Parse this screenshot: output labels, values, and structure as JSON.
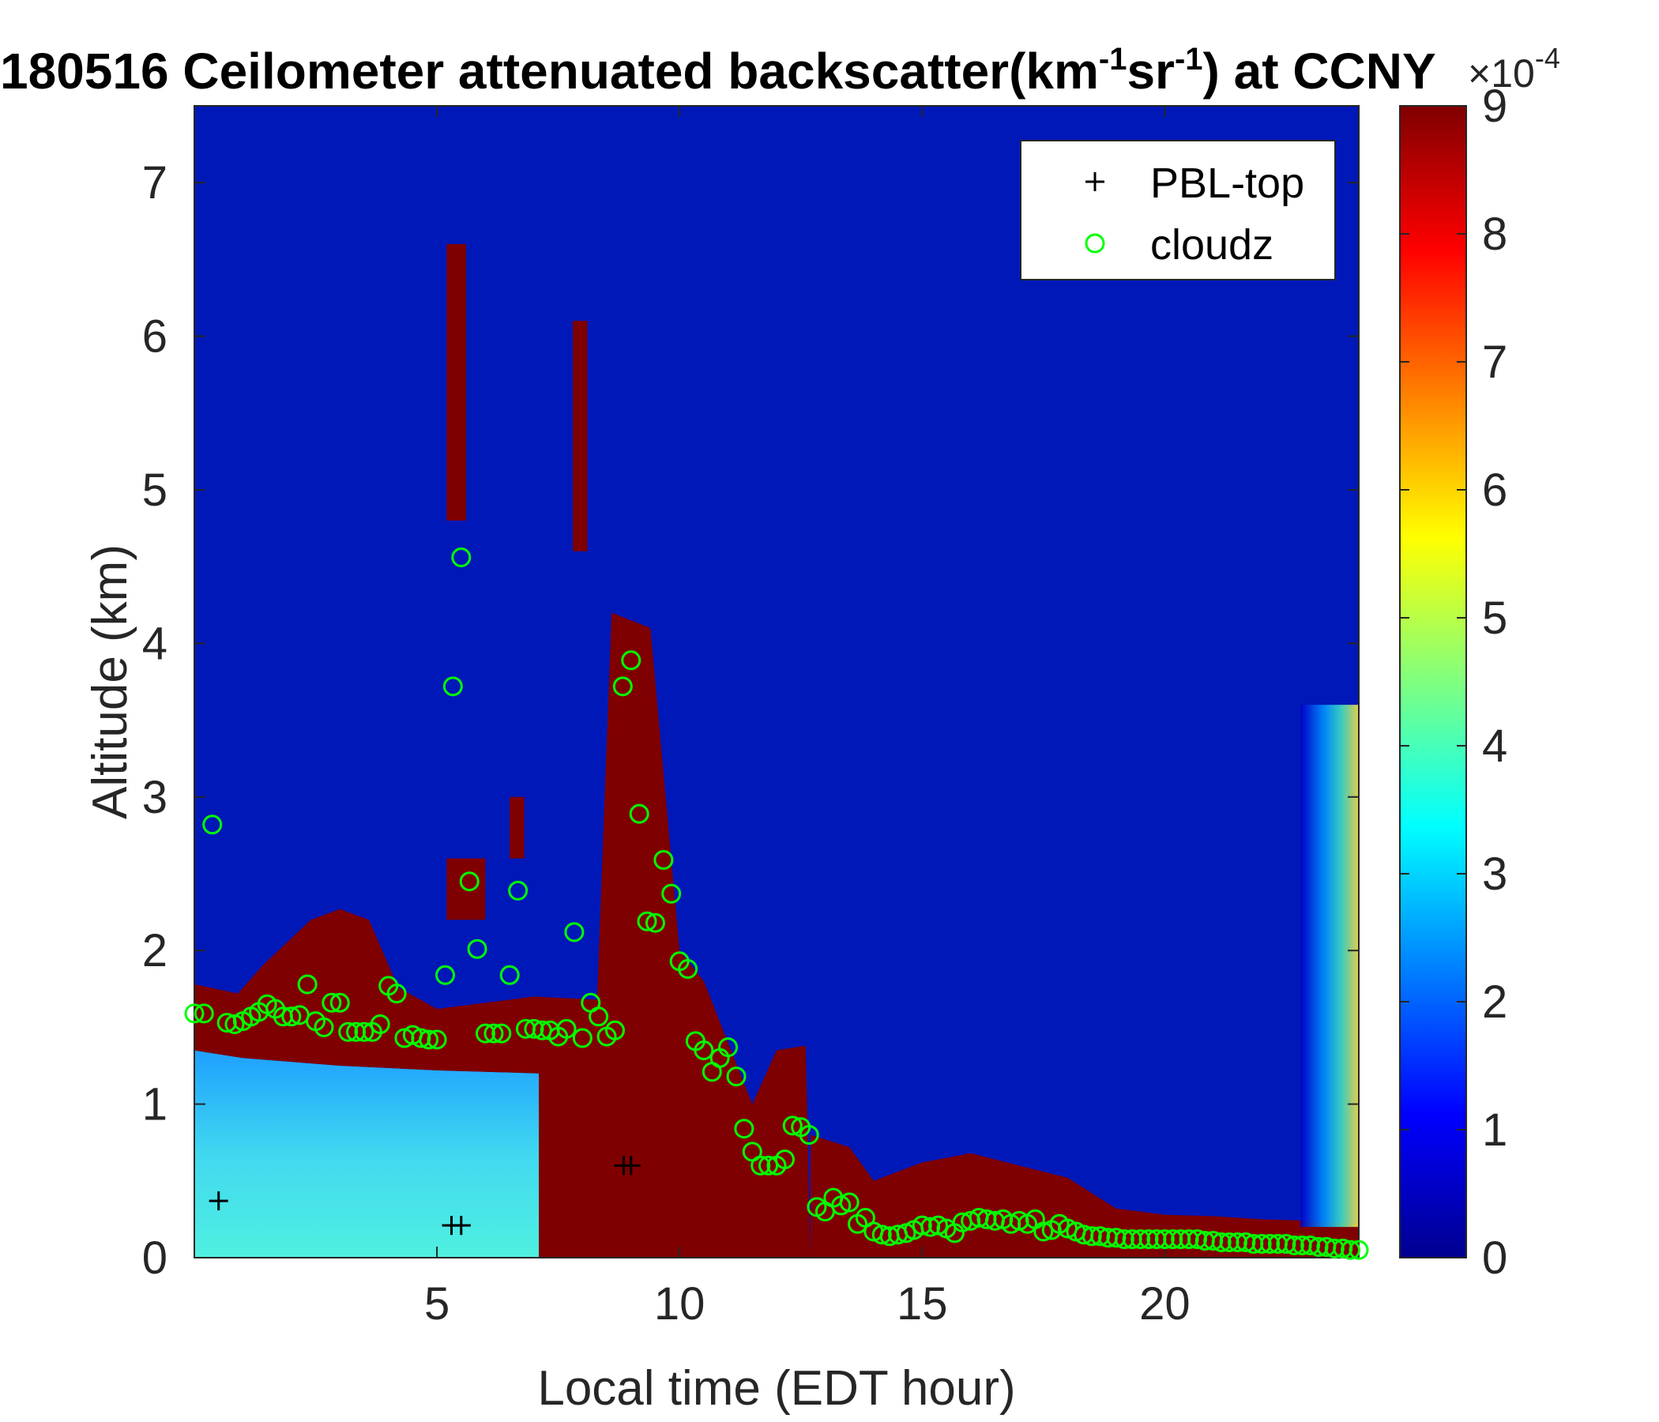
{
  "chart_data": {
    "type": "heatmap",
    "title": "180516 Ceilometer attenuated backscatter(km",
    "title_parts": [
      "-1",
      "sr",
      "-1",
      ") at CCNY"
    ],
    "xlabel": "Local time (EDT hour)",
    "ylabel": "Altitude (km)",
    "xlim": [
      0,
      24
    ],
    "ylim": [
      0,
      7.5
    ],
    "x_ticks": [
      5,
      10,
      15,
      20
    ],
    "y_ticks": [
      0,
      1,
      2,
      3,
      4,
      5,
      6,
      7
    ],
    "colorbar": {
      "colormap": "jet",
      "range": [
        0,
        9
      ],
      "ticks": [
        0,
        1,
        2,
        3,
        4,
        5,
        6,
        7,
        8,
        9
      ],
      "exponent_base": "×10",
      "exponent_power": "-4"
    },
    "legend": {
      "placement": "top-right",
      "entries": [
        {
          "label": "PBL-top",
          "marker": "+",
          "color": "#000000"
        },
        {
          "label": "cloudz",
          "marker": "o",
          "color": "#00ff00"
        }
      ]
    },
    "series": [
      {
        "name": "PBL-top",
        "marker": "plus",
        "color": "#000000",
        "points": [
          [
            0.5,
            0.37
          ],
          [
            5.3,
            0.21
          ],
          [
            5.5,
            0.21
          ],
          [
            8.85,
            0.6
          ],
          [
            9.0,
            0.6
          ]
        ]
      },
      {
        "name": "cloudz",
        "marker": "circle",
        "color": "#00ff00",
        "points": [
          [
            0.0,
            1.59
          ],
          [
            0.2,
            1.59
          ],
          [
            0.37,
            2.82
          ],
          [
            0.67,
            1.53
          ],
          [
            0.83,
            1.52
          ],
          [
            1.0,
            1.54
          ],
          [
            1.17,
            1.57
          ],
          [
            1.33,
            1.6
          ],
          [
            1.5,
            1.65
          ],
          [
            1.67,
            1.62
          ],
          [
            1.83,
            1.57
          ],
          [
            2.0,
            1.57
          ],
          [
            2.17,
            1.58
          ],
          [
            2.33,
            1.78
          ],
          [
            2.5,
            1.54
          ],
          [
            2.67,
            1.5
          ],
          [
            2.83,
            1.66
          ],
          [
            3.0,
            1.66
          ],
          [
            3.17,
            1.47
          ],
          [
            3.33,
            1.47
          ],
          [
            3.5,
            1.47
          ],
          [
            3.67,
            1.47
          ],
          [
            3.83,
            1.52
          ],
          [
            4.0,
            1.77
          ],
          [
            4.17,
            1.72
          ],
          [
            4.33,
            1.43
          ],
          [
            4.5,
            1.45
          ],
          [
            4.67,
            1.43
          ],
          [
            4.83,
            1.42
          ],
          [
            5.0,
            1.42
          ],
          [
            5.17,
            1.84
          ],
          [
            5.33,
            3.72
          ],
          [
            5.5,
            4.56
          ],
          [
            5.67,
            2.45
          ],
          [
            5.83,
            2.01
          ],
          [
            6.0,
            1.46
          ],
          [
            6.17,
            1.46
          ],
          [
            6.33,
            1.46
          ],
          [
            6.5,
            1.84
          ],
          [
            6.67,
            2.39
          ],
          [
            6.83,
            1.49
          ],
          [
            7.0,
            1.49
          ],
          [
            7.17,
            1.48
          ],
          [
            7.33,
            1.48
          ],
          [
            7.5,
            1.44
          ],
          [
            7.67,
            1.49
          ],
          [
            7.83,
            2.12
          ],
          [
            8.0,
            1.43
          ],
          [
            8.17,
            1.66
          ],
          [
            8.33,
            1.57
          ],
          [
            8.5,
            1.44
          ],
          [
            8.67,
            1.48
          ],
          [
            8.83,
            3.72
          ],
          [
            9.0,
            3.89
          ],
          [
            9.17,
            2.89
          ],
          [
            9.33,
            2.19
          ],
          [
            9.5,
            2.18
          ],
          [
            9.67,
            2.59
          ],
          [
            9.83,
            2.37
          ],
          [
            10.0,
            1.93
          ],
          [
            10.17,
            1.88
          ],
          [
            10.33,
            1.41
          ],
          [
            10.5,
            1.35
          ],
          [
            10.67,
            1.21
          ],
          [
            10.83,
            1.3
          ],
          [
            11.0,
            1.37
          ],
          [
            11.17,
            1.18
          ],
          [
            11.33,
            0.84
          ],
          [
            11.5,
            0.69
          ],
          [
            11.67,
            0.6
          ],
          [
            11.83,
            0.6
          ],
          [
            12.0,
            0.6
          ],
          [
            12.17,
            0.64
          ],
          [
            12.33,
            0.86
          ],
          [
            12.5,
            0.85
          ],
          [
            12.67,
            0.8
          ],
          [
            12.83,
            0.33
          ],
          [
            13.0,
            0.3
          ],
          [
            13.17,
            0.39
          ],
          [
            13.33,
            0.34
          ],
          [
            13.5,
            0.36
          ],
          [
            13.67,
            0.22
          ],
          [
            13.83,
            0.26
          ],
          [
            14.0,
            0.17
          ],
          [
            14.17,
            0.15
          ],
          [
            14.33,
            0.14
          ],
          [
            14.5,
            0.15
          ],
          [
            14.67,
            0.16
          ],
          [
            14.83,
            0.18
          ],
          [
            15.0,
            0.21
          ],
          [
            15.17,
            0.2
          ],
          [
            15.33,
            0.21
          ],
          [
            15.5,
            0.19
          ],
          [
            15.67,
            0.16
          ],
          [
            15.83,
            0.23
          ],
          [
            16.0,
            0.24
          ],
          [
            16.17,
            0.26
          ],
          [
            16.33,
            0.25
          ],
          [
            16.5,
            0.24
          ],
          [
            16.67,
            0.25
          ],
          [
            16.83,
            0.22
          ],
          [
            17.0,
            0.24
          ],
          [
            17.17,
            0.22
          ],
          [
            17.33,
            0.25
          ],
          [
            17.5,
            0.17
          ],
          [
            17.67,
            0.18
          ],
          [
            17.83,
            0.22
          ],
          [
            18.0,
            0.19
          ],
          [
            18.17,
            0.17
          ],
          [
            18.33,
            0.15
          ],
          [
            18.5,
            0.14
          ],
          [
            18.67,
            0.14
          ],
          [
            18.83,
            0.13
          ],
          [
            19.0,
            0.13
          ],
          [
            19.17,
            0.12
          ],
          [
            19.33,
            0.12
          ],
          [
            19.5,
            0.12
          ],
          [
            19.67,
            0.12
          ],
          [
            19.83,
            0.12
          ],
          [
            20.0,
            0.12
          ],
          [
            20.17,
            0.12
          ],
          [
            20.33,
            0.12
          ],
          [
            20.5,
            0.12
          ],
          [
            20.67,
            0.12
          ],
          [
            20.83,
            0.11
          ],
          [
            21.0,
            0.11
          ],
          [
            21.17,
            0.1
          ],
          [
            21.33,
            0.1
          ],
          [
            21.5,
            0.1
          ],
          [
            21.67,
            0.1
          ],
          [
            21.83,
            0.09
          ],
          [
            22.0,
            0.09
          ],
          [
            22.17,
            0.09
          ],
          [
            22.33,
            0.09
          ],
          [
            22.5,
            0.09
          ],
          [
            22.67,
            0.08
          ],
          [
            22.83,
            0.08
          ],
          [
            23.0,
            0.08
          ],
          [
            23.17,
            0.07
          ],
          [
            23.33,
            0.07
          ],
          [
            23.5,
            0.06
          ],
          [
            23.67,
            0.06
          ],
          [
            23.83,
            0.05
          ],
          [
            24.0,
            0.05
          ]
        ]
      }
    ],
    "heatmap_field": {
      "units": "×1e-4 km^-1 sr^-1",
      "background": 0.2,
      "layers": [
        {
          "name": "surface-aerosol",
          "x": [
            0,
            7.1
          ],
          "y_top_by_x": [
            [
              0,
              1.35
            ],
            [
              1,
              1.3
            ],
            [
              3,
              1.25
            ],
            [
              5,
              1.22
            ],
            [
              7.1,
              1.2
            ]
          ],
          "value": 2.8
        },
        {
          "name": "residual-layer",
          "x": [
            0,
            12.7
          ],
          "y_top_by_x": [
            [
              0,
              1.78
            ],
            [
              0.9,
              1.72
            ],
            [
              1.4,
              1.9
            ],
            [
              2.4,
              2.2
            ],
            [
              3.0,
              2.27
            ],
            [
              3.6,
              2.2
            ],
            [
              4.2,
              1.76
            ],
            [
              5.0,
              1.62
            ],
            [
              6.0,
              1.66
            ],
            [
              7.0,
              1.7
            ],
            [
              8.3,
              1.68
            ],
            [
              8.6,
              4.2
            ],
            [
              9.4,
              4.1
            ],
            [
              10.0,
              2.0
            ],
            [
              10.5,
              1.8
            ],
            [
              11.0,
              1.4
            ],
            [
              11.5,
              1.0
            ],
            [
              12.0,
              1.35
            ],
            [
              12.6,
              1.38
            ]
          ],
          "y_bottom_by_x": [
            [
              0,
              1.35
            ],
            [
              5,
              1.22
            ],
            [
              7.1,
              1.2
            ],
            [
              7.1,
              0
            ]
          ],
          "value": 9.5
        },
        {
          "name": "boundary-layer",
          "x": [
            12.7,
            24
          ],
          "y_top_by_x": [
            [
              12.7,
              0.8
            ],
            [
              13.5,
              0.72
            ],
            [
              14.0,
              0.5
            ],
            [
              15.0,
              0.62
            ],
            [
              16.0,
              0.68
            ],
            [
              17.0,
              0.6
            ],
            [
              18.0,
              0.52
            ],
            [
              19.0,
              0.32
            ],
            [
              20.0,
              0.28
            ],
            [
              21.0,
              0.27
            ],
            [
              22.0,
              0.25
            ],
            [
              23.0,
              0.24
            ],
            [
              24.0,
              0.22
            ]
          ],
          "value": 9.5
        },
        {
          "name": "cloud-column-1",
          "x": [
            5.2,
            5.6
          ],
          "y_range": [
            4.8,
            6.6
          ],
          "value": 9.5
        },
        {
          "name": "cloud-column-2",
          "x": [
            7.8,
            8.1
          ],
          "y_range": [
            4.6,
            6.1
          ],
          "value": 9.5
        },
        {
          "name": "cloud-column-3",
          "x": [
            6.5,
            6.8
          ],
          "y_range": [
            2.6,
            3.0
          ],
          "value": 9.5
        },
        {
          "name": "cloud-column-4",
          "x": [
            5.2,
            6.0
          ],
          "y_range": [
            2.2,
            2.6
          ],
          "value": 9.5
        },
        {
          "name": "late-aerosol-plume",
          "x": [
            22.8,
            24
          ],
          "y_range": [
            0.2,
            3.6
          ],
          "value": 4.5
        }
      ]
    }
  }
}
